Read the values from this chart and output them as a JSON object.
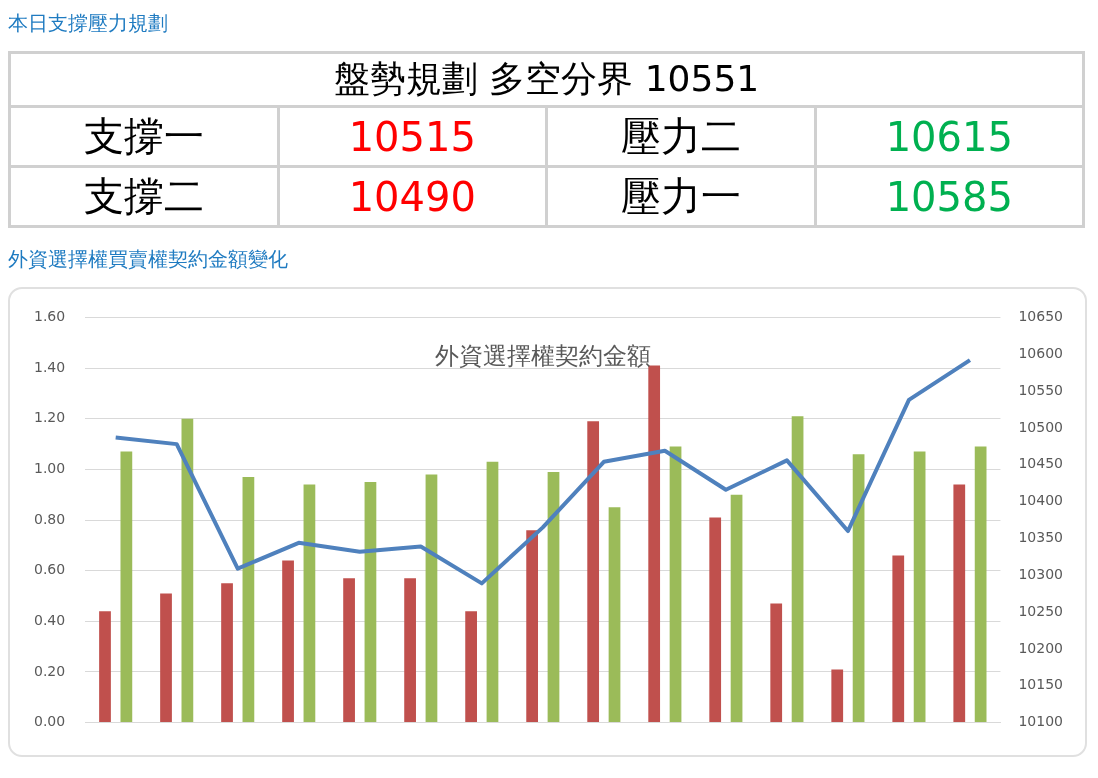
{
  "chart_data": [
    {
      "type": "other",
      "title": "本日支撐壓力規劃",
      "subtitle": "盤勢規劃 多空分界 10551",
      "annotations": [
        "支撐一",
        "10515",
        "壓力二",
        "10615",
        "支撐二",
        "10490",
        "壓力一",
        "10585"
      ],
      "colors": [
        "#000000",
        "#ff0000",
        "#000000",
        "#00b050",
        "#000000",
        "#ff0000",
        "#000000",
        "#00b050"
      ]
    },
    {
      "type": "bar",
      "title": "外資選擇權買賣權契約金額變化",
      "subtitle": "外資選擇權契約金額",
      "categories": [
        null,
        null,
        null,
        null,
        null,
        null,
        null,
        null,
        null,
        null,
        null,
        null,
        null,
        null,
        null
      ],
      "series": [
        {
          "color": "#c0504d",
          "values": [
            0.44,
            0.51,
            0.55,
            0.64,
            0.57,
            0.57,
            0.44,
            0.76,
            1.19,
            1.41,
            0.81,
            0.47,
            0.21,
            0.66,
            0.94
          ]
        },
        {
          "color": "#9bbb59",
          "values": [
            1.07,
            1.2,
            0.97,
            0.94,
            0.95,
            0.98,
            1.03,
            0.99,
            0.85,
            1.09,
            0.9,
            1.21,
            1.06,
            1.07,
            1.09
          ]
        },
        {
          "type": "line",
          "axis": "y2",
          "color": "#4f81bd",
          "values": [
            10487,
            10478,
            10309,
            10344,
            10332,
            10339,
            10289,
            10365,
            10454,
            10469,
            10416,
            10456,
            10360,
            10538,
            10592
          ]
        }
      ],
      "ylim": [
        0,
        1.6
      ],
      "yticks": [
        {
          "value": 0,
          "label": "0.00"
        },
        {
          "value": 0.2,
          "label": "0.20"
        },
        {
          "value": 0.4,
          "label": "0.40"
        },
        {
          "value": 0.6,
          "label": "0.60"
        },
        {
          "value": 0.8,
          "label": "0.80"
        },
        {
          "value": 1.0,
          "label": "1.00"
        },
        {
          "value": 1.2,
          "label": "1.20"
        },
        {
          "value": 1.4,
          "label": "1.40"
        },
        {
          "value": 1.6,
          "label": "1.60"
        }
      ],
      "y2lim": [
        10100,
        10650
      ],
      "y2ticks": [
        10100,
        10150,
        10200,
        10250,
        10300,
        10350,
        10400,
        10450,
        10500,
        10550,
        10600,
        10650
      ],
      "grid": "y",
      "legend": false,
      "marker": "none",
      "tick_labels": "y"
    }
  ]
}
